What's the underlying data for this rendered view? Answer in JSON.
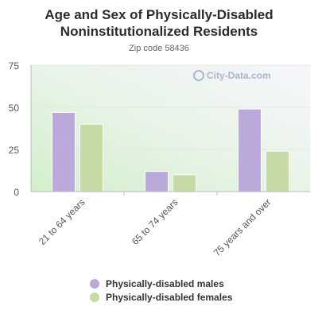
{
  "title": "Age and Sex of Physically-Disabled Noninstitutionalized Residents",
  "subtitle": "Zip code 58436",
  "watermark": "City-Data.com",
  "chart_data": {
    "type": "bar",
    "categories": [
      "21 to 64 years",
      "65 to 74 years",
      "75 years and over"
    ],
    "series": [
      {
        "name": "Physically-disabled males",
        "values": [
          47,
          12,
          49
        ],
        "color": "#bba9dc"
      },
      {
        "name": "Physically-disabled females",
        "values": [
          40,
          10,
          24
        ],
        "color": "#c6daa6"
      }
    ],
    "ylim": [
      0,
      75
    ],
    "yticks": [
      0,
      25,
      50,
      75
    ],
    "grid": true,
    "legend_position": "bottom"
  }
}
